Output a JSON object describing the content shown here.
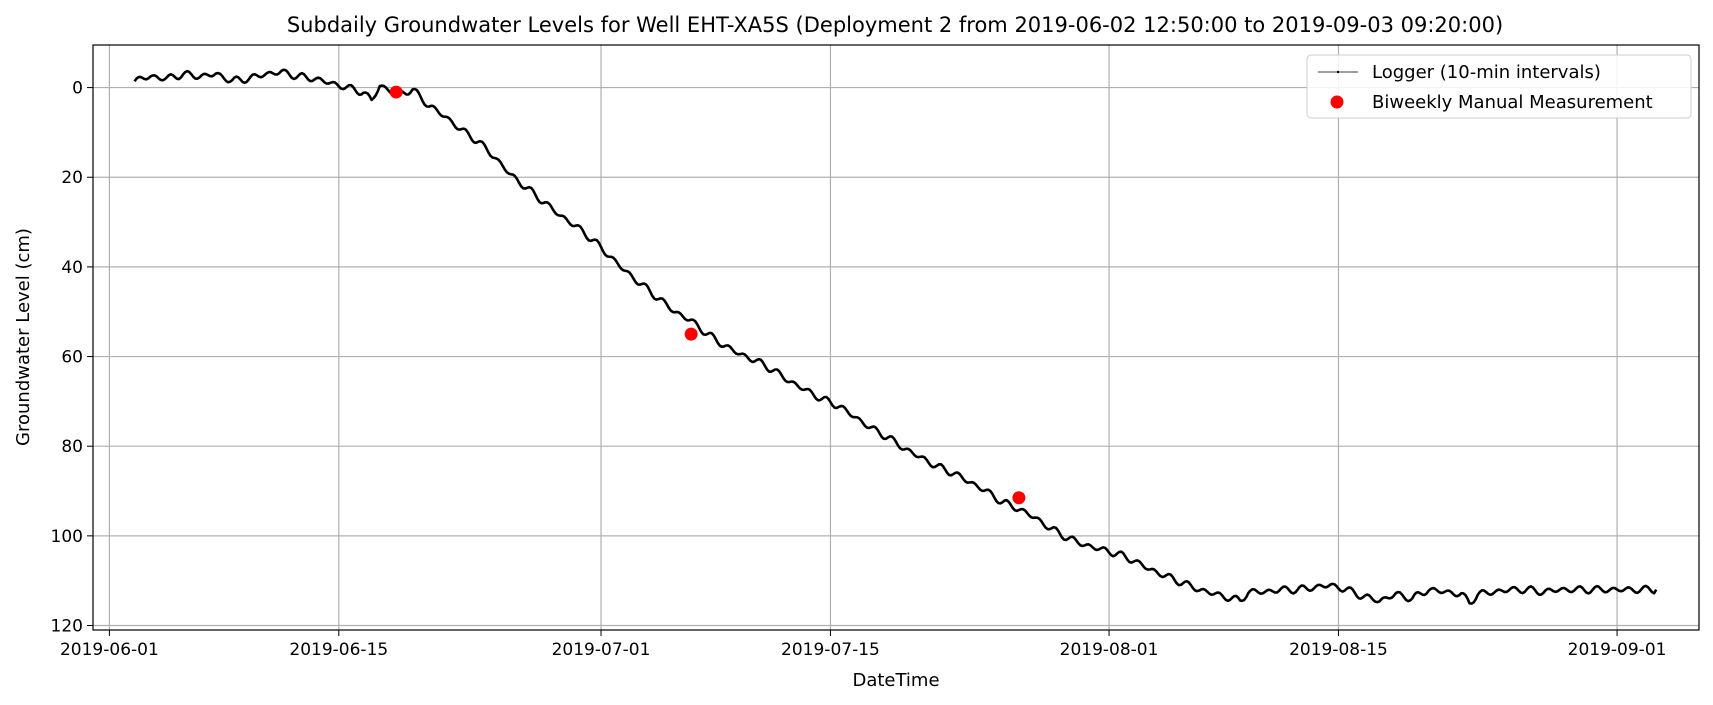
{
  "chart_data": {
    "type": "line",
    "title": "Subdaily Groundwater Levels for Well EHT-XA5S (Deployment 2 from 2019-06-02 12:50:00 to 2019-09-03 09:20:00)",
    "xlabel": "DateTime",
    "ylabel": "Groundwater Level (cm)",
    "xlim": [
      "2019-05-31",
      "2019-09-06"
    ],
    "ylim": [
      121,
      -9.5
    ],
    "y_inverted": true,
    "grid": true,
    "legend_position": "top-right",
    "x_ticks": [
      "2019-06-01",
      "2019-06-15",
      "2019-07-01",
      "2019-07-15",
      "2019-08-01",
      "2019-08-15",
      "2019-09-01"
    ],
    "y_ticks": [
      0,
      20,
      40,
      60,
      80,
      100,
      120
    ],
    "series": [
      {
        "name": "Logger (10-min intervals)",
        "kind": "line",
        "color": "#000000",
        "x": [
          "2019-06-02 12:50",
          "2019-06-03 12:00",
          "2019-06-04 12:00",
          "2019-06-05 12:00",
          "2019-06-06 12:00",
          "2019-06-07 12:00",
          "2019-06-08 12:00",
          "2019-06-09 12:00",
          "2019-06-10 12:00",
          "2019-06-11 12:00",
          "2019-06-12 12:00",
          "2019-06-13 12:00",
          "2019-06-14 12:00",
          "2019-06-15 12:00",
          "2019-06-16 12:00",
          "2019-06-17 00:00",
          "2019-06-17 12:00",
          "2019-06-18 00:00",
          "2019-06-18 12:00",
          "2019-06-19 12:00",
          "2019-06-20 12:00",
          "2019-06-21 12:00",
          "2019-06-22 12:00",
          "2019-06-23 12:00",
          "2019-06-24 12:00",
          "2019-06-25 12:00",
          "2019-06-26 12:00",
          "2019-06-27 12:00",
          "2019-06-28 12:00",
          "2019-06-29 12:00",
          "2019-06-30 12:00",
          "2019-07-01 12:00",
          "2019-07-02 12:00",
          "2019-07-03 12:00",
          "2019-07-04 12:00",
          "2019-07-05 12:00",
          "2019-07-06 12:00",
          "2019-07-07 12:00",
          "2019-07-08 12:00",
          "2019-07-09 12:00",
          "2019-07-10 12:00",
          "2019-07-11 12:00",
          "2019-07-12 12:00",
          "2019-07-13 12:00",
          "2019-07-14 12:00",
          "2019-07-15 12:00",
          "2019-07-16 12:00",
          "2019-07-17 12:00",
          "2019-07-18 12:00",
          "2019-07-19 12:00",
          "2019-07-20 12:00",
          "2019-07-21 12:00",
          "2019-07-22 12:00",
          "2019-07-23 12:00",
          "2019-07-24 12:00",
          "2019-07-25 12:00",
          "2019-07-26 12:00",
          "2019-07-27 12:00",
          "2019-07-28 12:00",
          "2019-07-29 12:00",
          "2019-07-30 12:00",
          "2019-07-31 12:00",
          "2019-08-01 12:00",
          "2019-08-02 12:00",
          "2019-08-03 12:00",
          "2019-08-04 12:00",
          "2019-08-05 12:00",
          "2019-08-06 12:00",
          "2019-08-07 12:00",
          "2019-08-08 12:00",
          "2019-08-09 00:00",
          "2019-08-09 12:00",
          "2019-08-10 12:00",
          "2019-08-11 12:00",
          "2019-08-12 12:00",
          "2019-08-13 12:00",
          "2019-08-14 12:00",
          "2019-08-15 12:00",
          "2019-08-16 12:00",
          "2019-08-17 12:00",
          "2019-08-18 12:00",
          "2019-08-19 12:00",
          "2019-08-20 12:00",
          "2019-08-21 12:00",
          "2019-08-22 12:00",
          "2019-08-23 00:00",
          "2019-08-23 12:00",
          "2019-08-24 12:00",
          "2019-08-25 12:00",
          "2019-08-26 12:00",
          "2019-08-27 12:00",
          "2019-08-28 12:00",
          "2019-08-29 12:00",
          "2019-08-30 12:00",
          "2019-08-31 12:00",
          "2019-09-01 12:00",
          "2019-09-02 12:00",
          "2019-09-03 09:20"
        ],
        "y": [
          -1.5,
          -2.5,
          -2.0,
          -3.0,
          -2.5,
          -3.0,
          -1.5,
          -2.0,
          -3.0,
          -3.5,
          -2.5,
          -2.0,
          -1.0,
          0.0,
          1.0,
          3.0,
          -0.5,
          0.5,
          1.5,
          0.5,
          4.0,
          6.5,
          9.5,
          12.0,
          15.5,
          19.5,
          22.5,
          25.5,
          28.5,
          31.0,
          34.0,
          37.5,
          41.0,
          44.0,
          47.0,
          50.0,
          52.0,
          55.0,
          57.5,
          59.5,
          61.0,
          63.0,
          65.5,
          67.5,
          69.5,
          71.0,
          73.5,
          76.0,
          78.0,
          80.5,
          82.5,
          84.5,
          86.0,
          88.0,
          90.0,
          92.5,
          94.0,
          96.0,
          98.5,
          100.5,
          102.0,
          103.0,
          104.0,
          105.5,
          107.5,
          109.0,
          110.5,
          112.0,
          113.0,
          114.0,
          114.5,
          112.5,
          112.5,
          112.0,
          112.0,
          111.5,
          111.0,
          112.0,
          113.5,
          114.5,
          113.0,
          114.0,
          112.0,
          112.5,
          113.0,
          115.0,
          113.0,
          112.5,
          112.0,
          112.0,
          112.5,
          112.0,
          112.0,
          112.0,
          112.0,
          112.0,
          112.0,
          112.0
        ]
      },
      {
        "name": "Biweekly Manual Measurement",
        "kind": "scatter",
        "color": "#ff0000",
        "x": [
          "2019-06-18 12:00",
          "2019-07-06 12:00",
          "2019-07-26 12:00"
        ],
        "y": [
          1.0,
          55.0,
          91.5
        ]
      }
    ]
  }
}
